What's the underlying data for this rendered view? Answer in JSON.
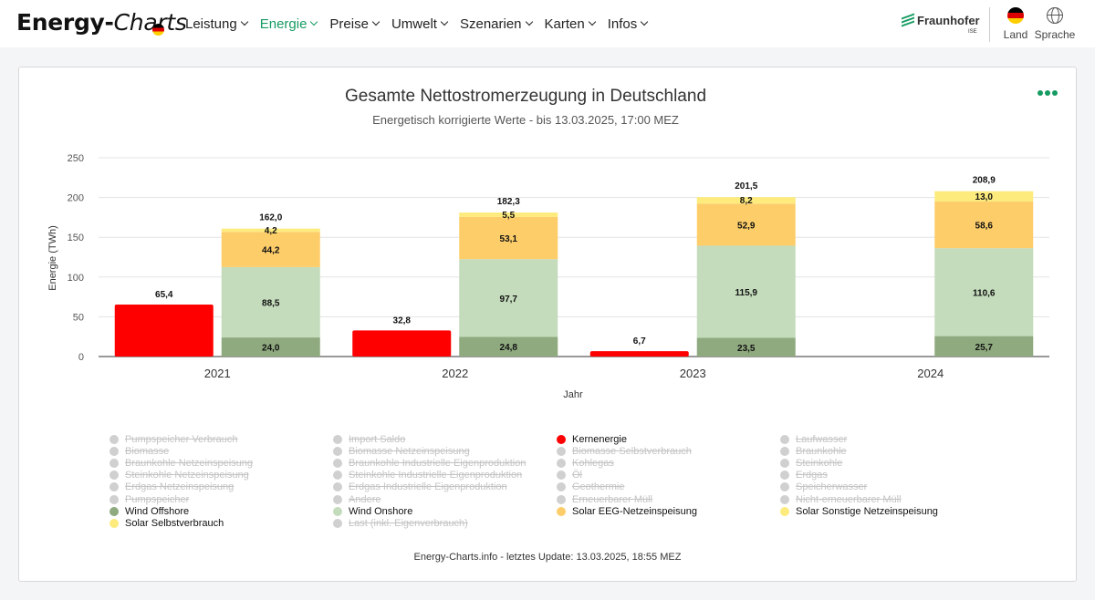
{
  "header": {
    "brand_main": "Energy-",
    "brand_italic": "Charts",
    "nav": [
      {
        "label": "Leistung",
        "active": false
      },
      {
        "label": "Energie",
        "active": true
      },
      {
        "label": "Preise",
        "active": false
      },
      {
        "label": "Umwelt",
        "active": false
      },
      {
        "label": "Szenarien",
        "active": false
      },
      {
        "label": "Karten",
        "active": false
      },
      {
        "label": "Infos",
        "active": false
      }
    ],
    "partner_name": "Fraunhofer",
    "partner_sub": "ISE",
    "land_label": "Land",
    "language_label": "Sprache"
  },
  "chart_data": {
    "type": "bar",
    "title": "Gesamte Nettostromerzeugung in Deutschland",
    "subtitle": "Energetisch korrigierte Werte - bis 13.03.2025, 17:00 MEZ",
    "xlabel": "Jahr",
    "ylabel": "Energie (TWh)",
    "ylim": [
      0,
      250
    ],
    "yticks": [
      0,
      50,
      100,
      150,
      200,
      250
    ],
    "grid": true,
    "categories": [
      "2021",
      "2022",
      "2023",
      "2024"
    ],
    "series": [
      {
        "name": "Kernenergie",
        "stack": "nuclear",
        "color": "#ff0000",
        "values": [
          65.4,
          32.8,
          6.7,
          0
        ],
        "labels": [
          "65,4",
          "32,8",
          "6,7",
          ""
        ]
      },
      {
        "name": "Wind Offshore",
        "stack": "renew",
        "color": "#8faa7f",
        "values": [
          24.0,
          24.8,
          23.5,
          25.7
        ],
        "labels": [
          "24,0",
          "24,8",
          "23,5",
          "25,7"
        ]
      },
      {
        "name": "Wind Onshore",
        "stack": "renew",
        "color": "#c4dcbc",
        "values": [
          88.5,
          97.7,
          115.9,
          110.6
        ],
        "labels": [
          "88,5",
          "97,7",
          "115,9",
          "110,6"
        ]
      },
      {
        "name": "Solar EEG-Netzeinspeisung",
        "stack": "renew",
        "color": "#fdcd6a",
        "values": [
          44.2,
          53.1,
          52.9,
          58.6
        ],
        "labels": [
          "44,2",
          "53,1",
          "52,9",
          "58,6"
        ]
      },
      {
        "name": "Solar Sonstige Netzeinspeisung",
        "stack": "renew",
        "color": "#fdeb7e",
        "values": [
          4.2,
          5.5,
          8.2,
          13.0
        ],
        "labels": [
          "4,2",
          "5,5",
          "8,2",
          "13,0"
        ]
      }
    ],
    "stack_totals": {
      "stack": "renew",
      "labels": [
        "162,0",
        "182,3",
        "201,5",
        "208,9"
      ]
    }
  },
  "legend": {
    "columns": [
      [
        {
          "label": "Pumpspeicher Verbrauch",
          "on": false,
          "color": "#d0d0d0"
        },
        {
          "label": "Biomasse",
          "on": false,
          "color": "#d0d0d0"
        },
        {
          "label": "Braunkohle Netzeinspeisung",
          "on": false,
          "color": "#d0d0d0"
        },
        {
          "label": "Steinkohle Netzeinspeisung",
          "on": false,
          "color": "#d0d0d0"
        },
        {
          "label": "Erdgas Netzeinspeisung",
          "on": false,
          "color": "#d0d0d0"
        },
        {
          "label": "Pumpspeicher",
          "on": false,
          "color": "#d0d0d0"
        },
        {
          "label": "Wind Offshore",
          "on": true,
          "color": "#8faa7f"
        },
        {
          "label": "Solar Selbstverbrauch",
          "on": true,
          "color": "#fdeb7e"
        }
      ],
      [
        {
          "label": "Import Saldo",
          "on": false,
          "color": "#d0d0d0"
        },
        {
          "label": "Biomasse Netzeinspeisung",
          "on": false,
          "color": "#d0d0d0"
        },
        {
          "label": "Braunkohle Industrielle Eigenproduktion",
          "on": false,
          "color": "#d0d0d0"
        },
        {
          "label": "Steinkohle Industrielle Eigenproduktion",
          "on": false,
          "color": "#d0d0d0"
        },
        {
          "label": "Erdgas Industrielle Eigenproduktion",
          "on": false,
          "color": "#d0d0d0"
        },
        {
          "label": "Andere",
          "on": false,
          "color": "#d0d0d0"
        },
        {
          "label": "Wind Onshore",
          "on": true,
          "color": "#c4dcbc"
        },
        {
          "label": "Last (inkl. Eigenverbrauch)",
          "on": false,
          "color": "#d0d0d0"
        }
      ],
      [
        {
          "label": "Kernenergie",
          "on": true,
          "color": "#ff0000"
        },
        {
          "label": "Biomasse Selbstverbrauch",
          "on": false,
          "color": "#d0d0d0"
        },
        {
          "label": "Kohlegas",
          "on": false,
          "color": "#d0d0d0"
        },
        {
          "label": "Öl",
          "on": false,
          "color": "#d0d0d0"
        },
        {
          "label": "Geothermie",
          "on": false,
          "color": "#d0d0d0"
        },
        {
          "label": "Erneuerbarer Müll",
          "on": false,
          "color": "#d0d0d0"
        },
        {
          "label": "Solar EEG-Netzeinspeisung",
          "on": true,
          "color": "#fdcd6a"
        }
      ],
      [
        {
          "label": "Laufwasser",
          "on": false,
          "color": "#d0d0d0"
        },
        {
          "label": "Braunkohle",
          "on": false,
          "color": "#d0d0d0"
        },
        {
          "label": "Steinkohle",
          "on": false,
          "color": "#d0d0d0"
        },
        {
          "label": "Erdgas",
          "on": false,
          "color": "#d0d0d0"
        },
        {
          "label": "Speicherwasser",
          "on": false,
          "color": "#d0d0d0"
        },
        {
          "label": "Nicht-erneuerbarer Müll",
          "on": false,
          "color": "#d0d0d0"
        },
        {
          "label": "Solar Sonstige Netzeinspeisung",
          "on": true,
          "color": "#fdeb7e"
        }
      ]
    ]
  },
  "footer": "Energy-Charts.info - letztes Update: 13.03.2025, 18:55 MEZ"
}
